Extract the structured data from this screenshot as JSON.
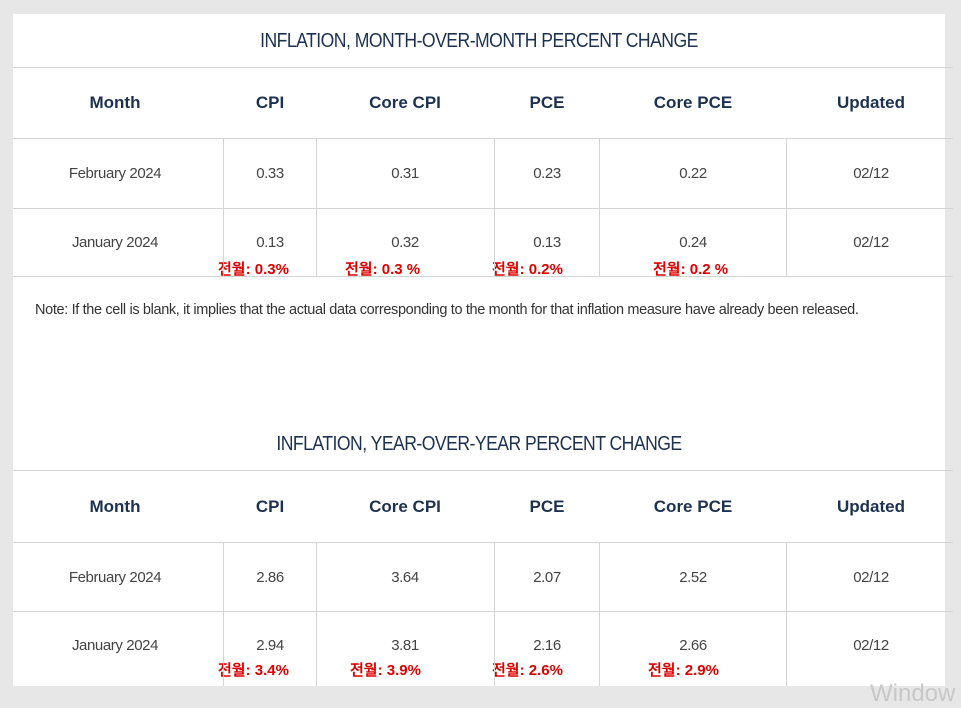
{
  "mom_table": {
    "title": "INFLATION, MONTH-OVER-MONTH PERCENT CHANGE",
    "headers": [
      "Month",
      "CPI",
      "Core CPI",
      "PCE",
      "Core PCE",
      "Updated"
    ],
    "rows": [
      [
        "February 2024",
        "0.33",
        "0.31",
        "0.23",
        "0.22",
        "02/12"
      ],
      [
        "January 2024",
        "0.13",
        "0.32",
        "0.13",
        "0.24",
        "02/12"
      ]
    ],
    "prev_annotations": [
      "전월: 0.3%",
      "전월: 0.3 %",
      "전월: 0.2%",
      "전월: 0.2 %"
    ]
  },
  "note": "Note: If the cell is blank, it implies that the actual data corresponding to the month for that inflation measure have already been released.",
  "yoy_table": {
    "title": "INFLATION, YEAR-OVER-YEAR PERCENT CHANGE",
    "headers": [
      "Month",
      "CPI",
      "Core CPI",
      "PCE",
      "Core PCE",
      "Updated"
    ],
    "rows": [
      [
        "February 2024",
        "2.86",
        "3.64",
        "2.07",
        "2.52",
        "02/12"
      ],
      [
        "January 2024",
        "2.94",
        "3.81",
        "2.16",
        "2.66",
        "02/12"
      ]
    ],
    "prev_annotations": [
      "전월: 3.4%",
      "전월: 3.9%",
      "전월: 2.6%",
      "전월: 2.9%"
    ]
  },
  "watermark": "Window"
}
